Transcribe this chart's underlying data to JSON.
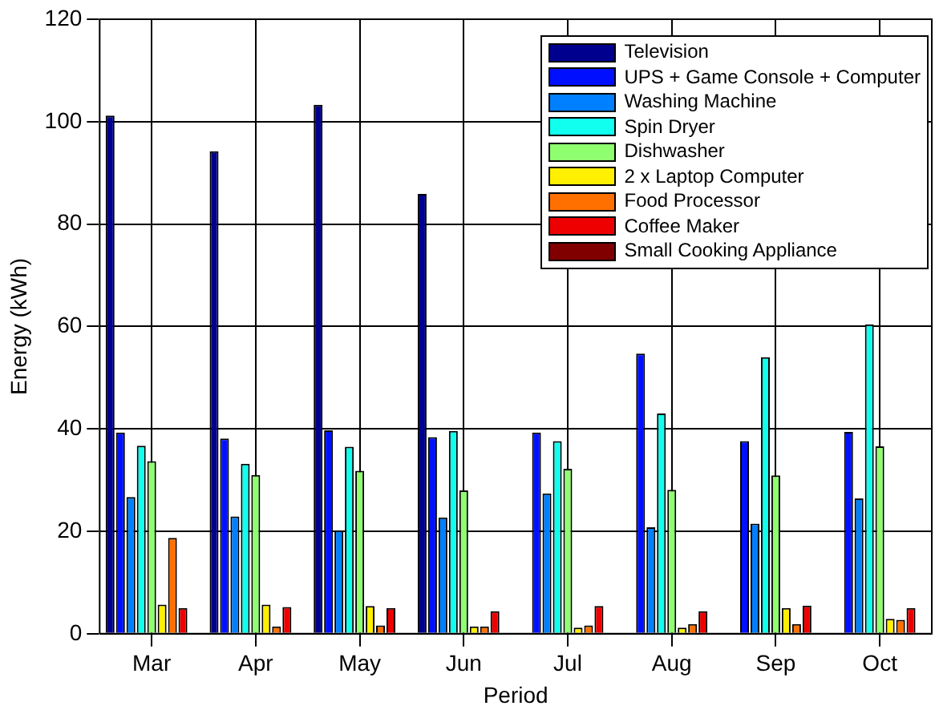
{
  "chart_data": {
    "type": "bar",
    "xlabel": "Period",
    "ylabel": "Energy (kWh)",
    "categories": [
      "Mar",
      "Apr",
      "May",
      "Jun",
      "Jul",
      "Aug",
      "Sep",
      "Oct"
    ],
    "ylim": [
      0,
      120
    ],
    "yticks": [
      0,
      20,
      40,
      60,
      80,
      100,
      120
    ],
    "grid": true,
    "legend": "top right",
    "series": [
      {
        "name": "Television",
        "color": "#00008f",
        "values": [
          101.2,
          94.2,
          103.3,
          85.9,
          null,
          null,
          null,
          null
        ]
      },
      {
        "name": "UPS + Game Console + Computer",
        "color": "#0010ff",
        "values": [
          39.3,
          38.1,
          39.7,
          38.4,
          39.3,
          54.7,
          37.6,
          39.4
        ]
      },
      {
        "name": "Washing Machine",
        "color": "#0080ff",
        "values": [
          26.7,
          22.9,
          20.2,
          22.7,
          27.4,
          20.8,
          21.5,
          26.4
        ]
      },
      {
        "name": "Spin Dryer",
        "color": "#10ffef",
        "values": [
          36.7,
          33.2,
          36.5,
          39.6,
          37.6,
          43.0,
          54.0,
          60.4
        ]
      },
      {
        "name": "Dishwasher",
        "color": "#8fff70",
        "values": [
          33.7,
          31.0,
          31.8,
          28.0,
          32.2,
          28.1,
          30.9,
          36.6
        ]
      },
      {
        "name": "2 x Laptop Computer",
        "color": "#ffef00",
        "values": [
          5.7,
          5.7,
          5.4,
          1.4,
          1.2,
          1.2,
          5.0,
          2.9
        ]
      },
      {
        "name": "Food Processor",
        "color": "#ff7000",
        "values": [
          18.7,
          1.4,
          1.6,
          1.4,
          1.6,
          1.9,
          1.9,
          2.7
        ]
      },
      {
        "name": "Coffee Maker",
        "color": "#ef0000",
        "values": [
          5.0,
          5.2,
          5.0,
          4.4,
          5.4,
          4.4,
          5.5,
          5.0
        ]
      },
      {
        "name": "Small Cooking Appliance",
        "color": "#800000",
        "values": [
          0,
          0,
          0,
          0,
          0,
          0,
          0,
          0
        ]
      }
    ]
  }
}
